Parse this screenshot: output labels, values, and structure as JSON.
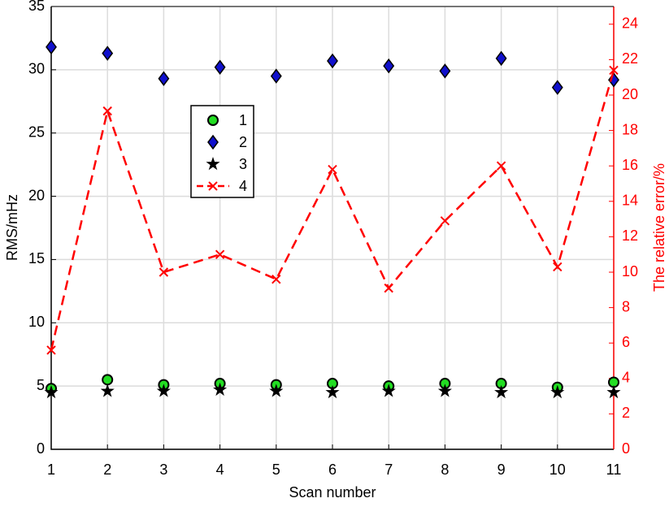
{
  "chart_data": {
    "type": "dual-axis",
    "xlabel": "Scan number",
    "ylabel": "RMS/mHz",
    "y2label": "The relative error/%",
    "x": [
      1,
      2,
      3,
      4,
      5,
      6,
      7,
      8,
      9,
      10,
      11
    ],
    "xlim": [
      1,
      11
    ],
    "xticks": [
      1,
      2,
      3,
      4,
      5,
      6,
      7,
      8,
      9,
      10,
      11
    ],
    "ylim": [
      0,
      35
    ],
    "yticks": [
      0,
      5,
      10,
      15,
      20,
      25,
      30,
      35
    ],
    "y2lim": [
      0,
      25
    ],
    "y2ticks": [
      0,
      2,
      4,
      6,
      8,
      10,
      12,
      14,
      16,
      18,
      20,
      22,
      24
    ],
    "grid": true,
    "legend": "upper left",
    "series": [
      {
        "name": "1",
        "marker": "circle",
        "color": "#22dd22",
        "values": [
          4.8,
          5.5,
          5.1,
          5.2,
          5.1,
          5.2,
          5.0,
          5.2,
          5.2,
          4.9,
          5.3
        ]
      },
      {
        "name": "2",
        "marker": "diamond",
        "color": "#1010cc",
        "values": [
          31.8,
          31.3,
          29.3,
          30.2,
          29.5,
          30.7,
          30.3,
          29.9,
          30.9,
          28.6,
          29.2
        ]
      },
      {
        "name": "3",
        "marker": "star",
        "color": "#000000",
        "values": [
          4.5,
          4.6,
          4.6,
          4.7,
          4.6,
          4.5,
          4.6,
          4.6,
          4.5,
          4.5,
          4.5
        ]
      },
      {
        "name": "4",
        "marker": "x",
        "color": "#ff0000",
        "axis": "y2",
        "line": "dashed",
        "values": [
          5.6,
          19.1,
          10.0,
          11.0,
          9.6,
          15.8,
          9.1,
          12.9,
          16.0,
          10.3,
          21.4
        ]
      }
    ]
  }
}
